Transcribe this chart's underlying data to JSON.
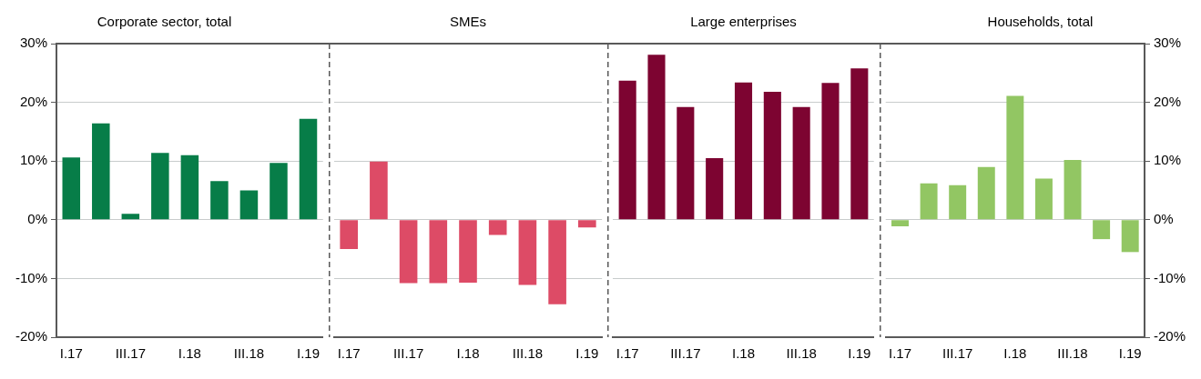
{
  "chart_data": [
    {
      "type": "bar",
      "title": "Corporate sector, total",
      "categories": [
        "I.17",
        null,
        "III.17",
        null,
        "I.18",
        null,
        "III.18",
        null,
        "I.19"
      ],
      "values": [
        10.6,
        16.4,
        1.0,
        11.4,
        11.0,
        6.6,
        5.0,
        9.7,
        17.2
      ],
      "color": "#077d48",
      "ylim": [
        -20,
        30
      ],
      "yticks": [
        {
          "value": -20,
          "label": "-20%"
        },
        {
          "value": -10,
          "label": "-10%"
        },
        {
          "value": 0,
          "label": "0%"
        },
        {
          "value": 10,
          "label": "10%"
        },
        {
          "value": 20,
          "label": "20%"
        },
        {
          "value": 30,
          "label": "30%"
        }
      ],
      "grid": "y"
    },
    {
      "type": "bar",
      "title": "SMEs",
      "categories": [
        "I.17",
        null,
        "III.17",
        null,
        "I.18",
        null,
        "III.18",
        null,
        "I.19"
      ],
      "values": [
        -5.0,
        9.9,
        -10.8,
        -10.8,
        -10.7,
        -2.6,
        -11.1,
        -14.4,
        -1.3
      ],
      "color": "#dd4b66",
      "ylim": [
        -20,
        30
      ],
      "yticks": [
        -20,
        -10,
        0,
        10,
        20,
        30
      ],
      "grid": "y",
      "tick_labels": "x"
    },
    {
      "type": "bar",
      "title": "Large enterprises",
      "categories": [
        "I.17",
        null,
        "III.17",
        null,
        "I.18",
        null,
        "III.18",
        null,
        "I.19"
      ],
      "values": [
        23.7,
        28.1,
        19.2,
        10.5,
        23.4,
        21.8,
        19.2,
        23.3,
        25.8
      ],
      "color": "#7d0431",
      "ylim": [
        -20,
        30
      ],
      "yticks": [
        -20,
        -10,
        0,
        10,
        20,
        30
      ],
      "grid": "y",
      "tick_labels": "x"
    },
    {
      "type": "bar",
      "title": "Households, total",
      "categories": [
        "I.17",
        null,
        "III.17",
        null,
        "I.18",
        null,
        "III.18",
        null,
        "I.19"
      ],
      "series": [
        {
          "color": "#92c663",
          "axis": "y2",
          "values": [
            -1.1,
            6.2,
            5.9,
            9.0,
            21.1,
            7.0,
            10.2,
            -3.3,
            -5.5
          ]
        }
      ],
      "y2lim": [
        -20,
        30
      ],
      "y2ticks": [
        {
          "value": -20,
          "label": "-20%"
        },
        {
          "value": -10,
          "label": "-10%"
        },
        {
          "value": 0,
          "label": "0%"
        },
        {
          "value": 10,
          "label": "10%"
        },
        {
          "value": 20,
          "label": "20%"
        },
        {
          "value": 30,
          "label": "30%"
        }
      ],
      "grid": "y"
    }
  ]
}
